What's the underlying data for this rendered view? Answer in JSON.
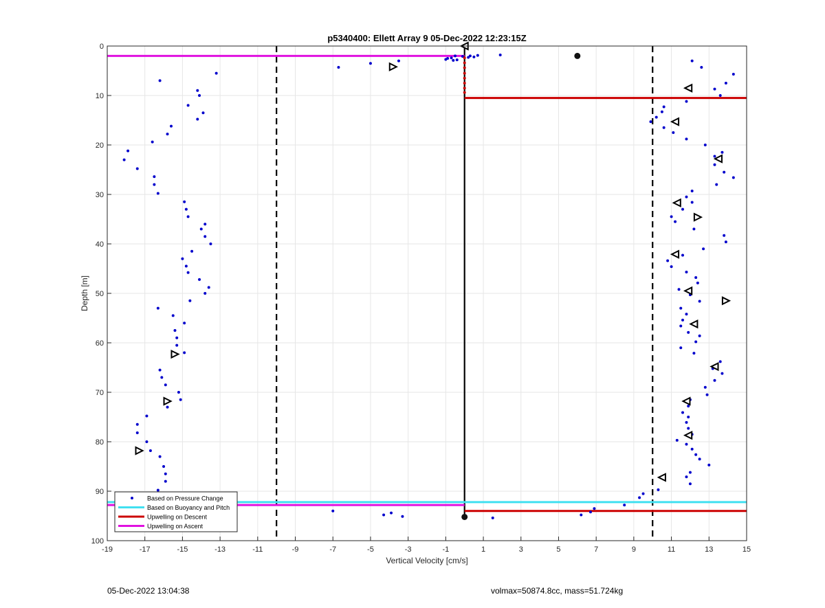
{
  "chart_data": {
    "type": "scatter",
    "title": "p5340400: Ellett Array 9 05-Dec-2022 12:23:15Z",
    "xlabel": "Vertical Velocity [cm/s]",
    "ylabel": "Depth [m]",
    "xlim": [
      -19,
      15
    ],
    "ylim": [
      0,
      100
    ],
    "y_reversed": true,
    "grid": true,
    "xticks": [
      -19,
      -17,
      -15,
      -13,
      -11,
      -9,
      -7,
      -5,
      -3,
      -1,
      1,
      3,
      5,
      7,
      9,
      11,
      13,
      15
    ],
    "yticks": [
      0,
      10,
      20,
      30,
      40,
      50,
      60,
      70,
      80,
      90,
      100
    ],
    "legend_position": "bottom-left",
    "legend": [
      {
        "label": "Based on Pressure Change",
        "color": "#0000cc",
        "marker": "dot"
      },
      {
        "label": "Based on Buoyancy and Pitch",
        "color": "#40e0f0",
        "marker": "line"
      },
      {
        "label": "Upwelling on Descent",
        "color": "#cc0000",
        "marker": "line"
      },
      {
        "label": "Upwelling on Ascent",
        "color": "#e010e0",
        "marker": "line"
      }
    ],
    "reference_lines": [
      {
        "x": -10,
        "style": "dashed",
        "color": "#000000"
      },
      {
        "x": 10,
        "style": "dashed",
        "color": "#000000"
      },
      {
        "x": 0,
        "y_range": [
          0,
          95
        ],
        "style": "solid",
        "color": "#000000"
      }
    ],
    "series": [
      {
        "color": "#0000cc",
        "points": [
          [
            -16.2,
            7
          ],
          [
            -13.2,
            5.5
          ],
          [
            -14.2,
            9
          ],
          [
            -14.1,
            10
          ],
          [
            -14.7,
            12
          ],
          [
            -13.9,
            13.5
          ],
          [
            -14.2,
            14.8
          ],
          [
            -15.6,
            16.2
          ],
          [
            -15.8,
            17.8
          ],
          [
            -16.6,
            19.4
          ],
          [
            -17.9,
            21.2
          ],
          [
            -18.1,
            23
          ],
          [
            -17.4,
            24.8
          ],
          [
            -16.5,
            26.4
          ],
          [
            -16.5,
            28
          ],
          [
            -16.3,
            29.8
          ],
          [
            -14.9,
            31.5
          ],
          [
            -14.8,
            33
          ],
          [
            -14.7,
            34.5
          ],
          [
            -13.8,
            36
          ],
          [
            -14,
            37
          ],
          [
            -13.8,
            38.5
          ],
          [
            -13.5,
            40
          ],
          [
            -14.5,
            41.5
          ],
          [
            -15,
            43
          ],
          [
            -14.8,
            44.5
          ],
          [
            -14.7,
            45.8
          ],
          [
            -14.1,
            47.2
          ],
          [
            -13.6,
            48.8
          ],
          [
            -13.8,
            50
          ],
          [
            -14.6,
            51.5
          ],
          [
            -16.3,
            53
          ],
          [
            -15.5,
            54.5
          ],
          [
            -14.9,
            56
          ],
          [
            -15.4,
            57.5
          ],
          [
            -15.3,
            59
          ],
          [
            -15.3,
            60.5
          ],
          [
            -14.9,
            62
          ],
          [
            -16.2,
            65.5
          ],
          [
            -16.1,
            67
          ],
          [
            -15.9,
            68.5
          ],
          [
            -15.2,
            70
          ],
          [
            -15.1,
            71.5
          ],
          [
            -15.8,
            73
          ],
          [
            -16.9,
            74.8
          ],
          [
            -17.4,
            76.5
          ],
          [
            -17.4,
            78.2
          ],
          [
            -16.9,
            80
          ],
          [
            -16.7,
            81.8
          ],
          [
            -16.2,
            83
          ],
          [
            -16,
            85
          ],
          [
            -15.9,
            86.5
          ],
          [
            -15.9,
            88
          ],
          [
            -16.3,
            89.8
          ],
          [
            -6.7,
            4.3
          ],
          [
            -5,
            3.5
          ],
          [
            -3.5,
            3
          ],
          [
            -1,
            2.7
          ],
          [
            -0.7,
            2.4
          ],
          [
            -0.5,
            2
          ],
          [
            -0.4,
            2.8
          ],
          [
            -0.1,
            2.1
          ],
          [
            0.3,
            2
          ],
          [
            0.5,
            2.2
          ],
          [
            0.7,
            1.9
          ],
          [
            0.2,
            2.3
          ],
          [
            1.9,
            1.8
          ],
          [
            -0.6,
            2.9
          ],
          [
            -0.9,
            2.5
          ],
          [
            12.1,
            3
          ],
          [
            12.6,
            4.3
          ],
          [
            14.3,
            5.7
          ],
          [
            13.9,
            7.5
          ],
          [
            13.3,
            8.7
          ],
          [
            13.6,
            10
          ],
          [
            11.8,
            11.2
          ],
          [
            10.6,
            12.3
          ],
          [
            10.5,
            13.3
          ],
          [
            10.2,
            14.4
          ],
          [
            9.9,
            15.3
          ],
          [
            10.6,
            16.5
          ],
          [
            11.1,
            17.5
          ],
          [
            11.8,
            18.8
          ],
          [
            12.8,
            20
          ],
          [
            13.7,
            21.5
          ],
          [
            13.3,
            22.3
          ],
          [
            13.3,
            24
          ],
          [
            13.8,
            25.5
          ],
          [
            14.3,
            26.6
          ],
          [
            13.4,
            28
          ],
          [
            12.1,
            29.3
          ],
          [
            11.8,
            30.5
          ],
          [
            12.1,
            31.6
          ],
          [
            11.6,
            33
          ],
          [
            11,
            34.5
          ],
          [
            11.2,
            35.5
          ],
          [
            12.2,
            37
          ],
          [
            13.8,
            38.3
          ],
          [
            13.9,
            39.6
          ],
          [
            12.7,
            41
          ],
          [
            11.6,
            42.3
          ],
          [
            10.8,
            43.4
          ],
          [
            11,
            44.6
          ],
          [
            11.8,
            45.7
          ],
          [
            12.3,
            46.8
          ],
          [
            12.4,
            47.9
          ],
          [
            11.4,
            49.2
          ],
          [
            12,
            50.3
          ],
          [
            12.5,
            51.6
          ],
          [
            11.5,
            53
          ],
          [
            11.8,
            54.2
          ],
          [
            11.6,
            55.4
          ],
          [
            11.5,
            56.6
          ],
          [
            11.9,
            57.9
          ],
          [
            12.5,
            58.6
          ],
          [
            12.3,
            59.8
          ],
          [
            11.5,
            61
          ],
          [
            12.2,
            62.1
          ],
          [
            13.6,
            63.8
          ],
          [
            13.2,
            65.2
          ],
          [
            13.7,
            66.2
          ],
          [
            13.3,
            67.6
          ],
          [
            12.8,
            69
          ],
          [
            12.9,
            70.5
          ],
          [
            12,
            71.5
          ],
          [
            11.9,
            72.8
          ],
          [
            11.6,
            74.1
          ],
          [
            11.9,
            75
          ],
          [
            11.8,
            76.1
          ],
          [
            11.9,
            77.3
          ],
          [
            12.1,
            78.5
          ],
          [
            11.3,
            79.7
          ],
          [
            11.8,
            80.5
          ],
          [
            12.1,
            81.5
          ],
          [
            12.3,
            82.6
          ],
          [
            12.5,
            83.5
          ],
          [
            13,
            84.7
          ],
          [
            12,
            86.2
          ],
          [
            11.8,
            87.1
          ],
          [
            12,
            88.5
          ],
          [
            10.3,
            89.7
          ],
          [
            9.5,
            90.5
          ],
          [
            9.3,
            91.3
          ],
          [
            -7,
            94
          ],
          [
            -4.3,
            94.8
          ],
          [
            -3.9,
            94.4
          ],
          [
            -3.3,
            95.1
          ],
          [
            1.5,
            95.4
          ],
          [
            6.2,
            94.8
          ],
          [
            6.7,
            94.2
          ],
          [
            6.9,
            93.5
          ],
          [
            8.5,
            92.8
          ]
        ]
      },
      {
        "color": "#cc0000",
        "points": [
          [
            0,
            2.4
          ],
          [
            0,
            3.4
          ],
          [
            0,
            4.4
          ],
          [
            0,
            5.5
          ],
          [
            0,
            6.5
          ],
          [
            0,
            7.5
          ],
          [
            0,
            8.5
          ],
          [
            0,
            9.4
          ],
          [
            6,
            1.9
          ]
        ]
      }
    ],
    "triangles": [
      [
        0,
        0,
        "left"
      ],
      [
        -3.8,
        4.2,
        "right"
      ],
      [
        11.9,
        8.5,
        "left"
      ],
      [
        11.2,
        15.3,
        "left"
      ],
      [
        13.5,
        22.8,
        "left"
      ],
      [
        11.3,
        31.7,
        "left"
      ],
      [
        12.4,
        34.6,
        "right"
      ],
      [
        11.2,
        42.1,
        "left"
      ],
      [
        11.9,
        49.5,
        "left"
      ],
      [
        13.9,
        51.5,
        "right"
      ],
      [
        12.2,
        56.2,
        "left"
      ],
      [
        -15.4,
        62.3,
        "right"
      ],
      [
        13.3,
        64.8,
        "left"
      ],
      [
        -15.8,
        71.8,
        "right"
      ],
      [
        11.8,
        71.8,
        "left"
      ],
      [
        11.9,
        78.7,
        "left"
      ],
      [
        -17.3,
        81.8,
        "right"
      ],
      [
        10.5,
        87.2,
        "left"
      ]
    ],
    "black_blobs": [
      [
        -16,
        91.3
      ],
      [
        0,
        95.2
      ],
      [
        6,
        2
      ]
    ],
    "horizontal_lines": [
      {
        "series": "Based on Buoyancy and Pitch",
        "color": "#40e0f0",
        "y": 92.2,
        "x_range": [
          -19,
          15
        ]
      },
      {
        "series": "Upwelling on Ascent",
        "color": "#e010e0",
        "y": 2,
        "x_range": [
          -19,
          0
        ]
      },
      {
        "series": "Upwelling on Ascent",
        "color": "#e010e0",
        "y": 92.8,
        "x_range": [
          -19,
          0
        ]
      },
      {
        "series": "Upwelling on Descent",
        "color": "#cc0000",
        "y": 10.5,
        "x_range": [
          0,
          15
        ]
      },
      {
        "series": "Upwelling on Descent",
        "color": "#cc0000",
        "y": 94,
        "x_range": [
          0,
          15
        ]
      }
    ]
  },
  "footer": {
    "left": "05-Dec-2022 13:04:38",
    "right": "volmax=50874.8cc, mass=51.724kg"
  }
}
